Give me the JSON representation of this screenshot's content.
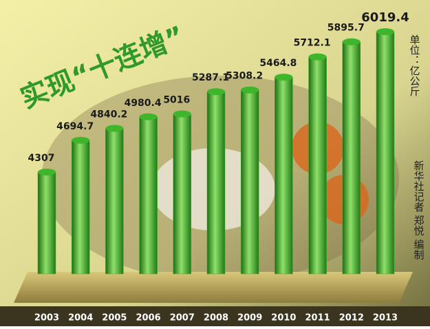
{
  "chart_data": {
    "type": "bar",
    "title": "实现“十连增”",
    "unit": "单位：亿公斤",
    "credit": "新华社记者 郑悦 编制",
    "categories": [
      "2003",
      "2004",
      "2005",
      "2006",
      "2007",
      "2008",
      "2009",
      "2010",
      "2011",
      "2012",
      "2013"
    ],
    "values": [
      4307,
      4694.7,
      4840.2,
      4980.4,
      5016,
      5287.1,
      5308.2,
      5464.8,
      5712.1,
      5895.7,
      6019.4
    ],
    "color": "#3fb52c"
  }
}
